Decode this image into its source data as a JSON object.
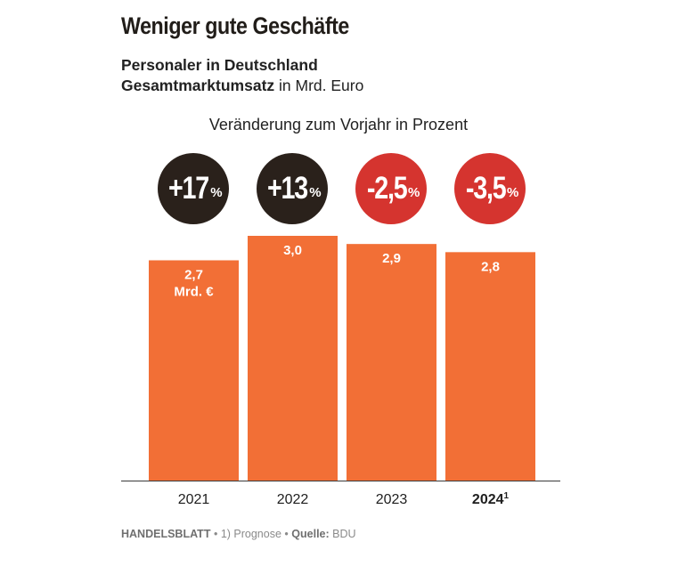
{
  "title": "Weniger gute Geschäfte",
  "subtitle_bold": "Personaler in Deutschland",
  "subtitle_line2_bold": "Gesamtmarktumsatz",
  "subtitle_line2_rest": " in Mrd. Euro",
  "change_label": "Veränderung zum Vorjahr in Prozent",
  "colors": {
    "bar": "#f26f36",
    "badge_positive": "#2a211b",
    "badge_negative": "#d5342f",
    "axis": "#3a3a3a"
  },
  "badges": [
    {
      "value": "+17",
      "unit": "%",
      "sign": "positive"
    },
    {
      "value": "+13",
      "unit": "%",
      "sign": "positive"
    },
    {
      "value": "-2,5",
      "unit": "%",
      "sign": "negative"
    },
    {
      "value": "-3,5",
      "unit": "%",
      "sign": "negative"
    }
  ],
  "chart_data": {
    "type": "bar",
    "categories": [
      "2021",
      "2022",
      "2023",
      "2024"
    ],
    "category_footnotes": [
      "",
      "",
      "",
      "1"
    ],
    "values": [
      2.7,
      3.0,
      2.9,
      2.8
    ],
    "value_labels": [
      "2,7",
      "3,0",
      "2,9",
      "2,8"
    ],
    "first_value_unit": "Mrd. €",
    "ylim": [
      0,
      3.0
    ],
    "grid": false
  },
  "footer": {
    "brand": "HANDELSBLATT",
    "note": "1) Prognose",
    "source_label": "Quelle:",
    "source": "BDU",
    "separator": "•"
  }
}
